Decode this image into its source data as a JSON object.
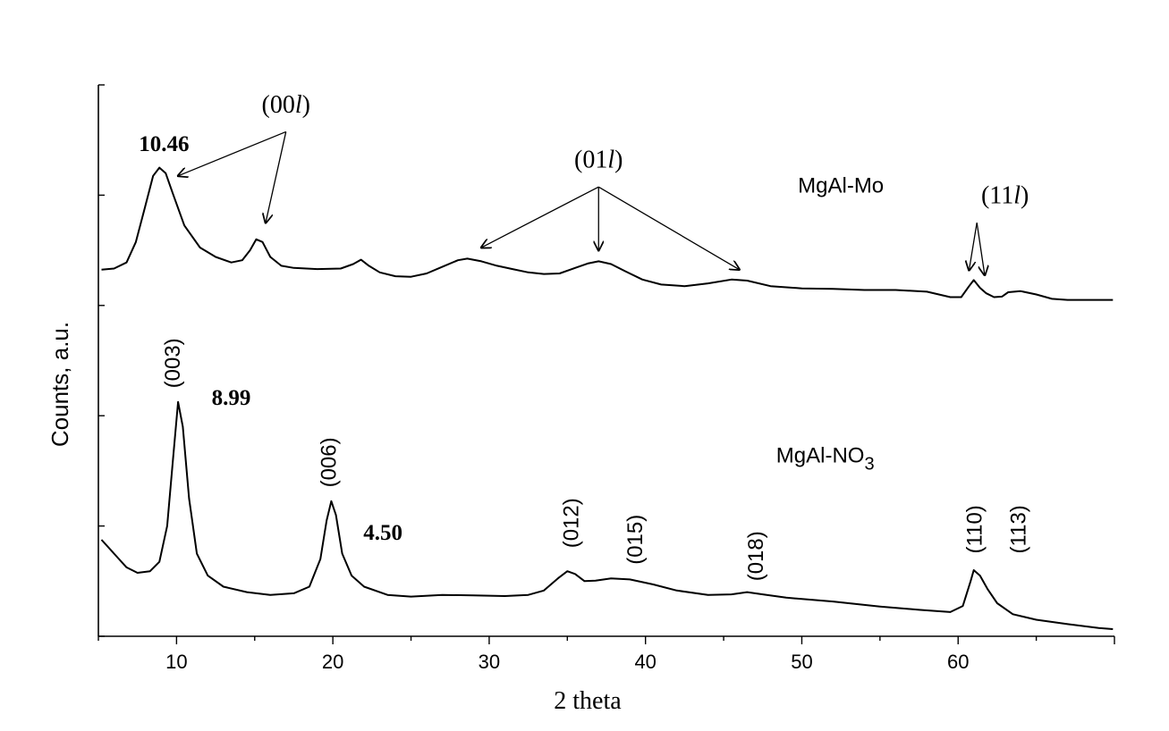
{
  "chart_data": {
    "type": "line",
    "xlabel": "2 theta",
    "ylabel": "Counts, a.u.",
    "xlim": [
      5,
      70
    ],
    "ylim": [
      0,
      100
    ],
    "x_ticks": [
      "10",
      "20",
      "30",
      "40",
      "50",
      "60"
    ],
    "x_tick_values": [
      10,
      20,
      30,
      40,
      50,
      60
    ],
    "grid": false,
    "series": [
      {
        "name": "MgAl-Mo",
        "points": [
          [
            5.2,
            66.5
          ],
          [
            6,
            66.7
          ],
          [
            6.8,
            67.8
          ],
          [
            7.4,
            71.5
          ],
          [
            8,
            78
          ],
          [
            8.5,
            83.5
          ],
          [
            8.9,
            85
          ],
          [
            9.3,
            84
          ],
          [
            9.8,
            80
          ],
          [
            10.5,
            74.5
          ],
          [
            11.5,
            70.5
          ],
          [
            12.5,
            68.8
          ],
          [
            13.5,
            67.8
          ],
          [
            14.2,
            68.2
          ],
          [
            14.7,
            70
          ],
          [
            15.1,
            72
          ],
          [
            15.5,
            71.5
          ],
          [
            16,
            68.8
          ],
          [
            16.7,
            67.2
          ],
          [
            17.5,
            66.8
          ],
          [
            19,
            66.6
          ],
          [
            20.5,
            66.7
          ],
          [
            21.3,
            67.5
          ],
          [
            21.8,
            68.3
          ],
          [
            22.3,
            67.2
          ],
          [
            23,
            66
          ],
          [
            24,
            65.3
          ],
          [
            25,
            65.2
          ],
          [
            26,
            65.8
          ],
          [
            27,
            67
          ],
          [
            28,
            68.2
          ],
          [
            28.6,
            68.5
          ],
          [
            29.5,
            68
          ],
          [
            30.5,
            67.2
          ],
          [
            31.5,
            66.6
          ],
          [
            32.5,
            66
          ],
          [
            33.5,
            65.7
          ],
          [
            34.5,
            65.8
          ],
          [
            35.5,
            66.8
          ],
          [
            36.3,
            67.6
          ],
          [
            37,
            68
          ],
          [
            37.8,
            67.5
          ],
          [
            38.7,
            66.2
          ],
          [
            39.8,
            64.7
          ],
          [
            41,
            63.8
          ],
          [
            42.5,
            63.5
          ],
          [
            44,
            64
          ],
          [
            45.5,
            64.7
          ],
          [
            46.5,
            64.5
          ],
          [
            48,
            63.5
          ],
          [
            50,
            63.1
          ],
          [
            52,
            63
          ],
          [
            54,
            62.8
          ],
          [
            56,
            62.8
          ],
          [
            58,
            62.5
          ],
          [
            59.5,
            61.5
          ],
          [
            60.2,
            61.5
          ],
          [
            60.7,
            63.5
          ],
          [
            61,
            64.6
          ],
          [
            61.4,
            63.2
          ],
          [
            61.8,
            62.2
          ],
          [
            62.3,
            61.5
          ],
          [
            62.8,
            61.6
          ],
          [
            63.2,
            62.4
          ],
          [
            64,
            62.6
          ],
          [
            65,
            62
          ],
          [
            66,
            61.2
          ],
          [
            67,
            61
          ],
          [
            68.5,
            61
          ],
          [
            69.9,
            61
          ]
        ]
      },
      {
        "name": "MgAl-NO3",
        "points": [
          [
            5.2,
            17.5
          ],
          [
            6,
            15
          ],
          [
            6.8,
            12.5
          ],
          [
            7.5,
            11.5
          ],
          [
            8.3,
            11.8
          ],
          [
            8.9,
            13.5
          ],
          [
            9.4,
            20
          ],
          [
            9.8,
            33
          ],
          [
            10.1,
            42.5
          ],
          [
            10.4,
            38
          ],
          [
            10.8,
            25
          ],
          [
            11.3,
            15
          ],
          [
            12,
            11
          ],
          [
            13,
            9
          ],
          [
            14.5,
            8
          ],
          [
            16,
            7.5
          ],
          [
            17.5,
            7.8
          ],
          [
            18.5,
            9
          ],
          [
            19.2,
            14
          ],
          [
            19.6,
            21
          ],
          [
            19.9,
            24.5
          ],
          [
            20.2,
            22
          ],
          [
            20.6,
            15
          ],
          [
            21.2,
            11
          ],
          [
            22,
            9
          ],
          [
            23.5,
            7.5
          ],
          [
            25,
            7.2
          ],
          [
            27,
            7.5
          ],
          [
            29,
            7.4
          ],
          [
            31,
            7.3
          ],
          [
            32.5,
            7.5
          ],
          [
            33.5,
            8.3
          ],
          [
            34.4,
            10.5
          ],
          [
            35,
            11.8
          ],
          [
            35.5,
            11.3
          ],
          [
            36.1,
            10
          ],
          [
            36.8,
            10.1
          ],
          [
            37.8,
            10.5
          ],
          [
            39,
            10.3
          ],
          [
            40.5,
            9.4
          ],
          [
            42,
            8.3
          ],
          [
            44,
            7.5
          ],
          [
            45.5,
            7.6
          ],
          [
            46.5,
            8
          ],
          [
            47.5,
            7.6
          ],
          [
            49,
            7
          ],
          [
            52,
            6.3
          ],
          [
            55,
            5.4
          ],
          [
            57.5,
            4.8
          ],
          [
            59.5,
            4.4
          ],
          [
            60.3,
            5.5
          ],
          [
            60.8,
            10
          ],
          [
            61,
            12
          ],
          [
            61.4,
            11
          ],
          [
            61.9,
            8.5
          ],
          [
            62.5,
            6
          ],
          [
            63.5,
            4
          ],
          [
            65,
            3
          ],
          [
            67,
            2.2
          ],
          [
            69,
            1.5
          ],
          [
            69.9,
            1.3
          ]
        ]
      }
    ],
    "annotations": {
      "d_spacings": [
        {
          "text": "10.46",
          "x": 9.2,
          "y": 88
        },
        {
          "text": "8.99",
          "x": 13.5,
          "y": 42
        },
        {
          "text": "4.50",
          "x": 23.2,
          "y": 17.5
        }
      ],
      "miller_indices": [
        {
          "text": "(003)",
          "x": 10.2,
          "y": 45
        },
        {
          "text": "(006)",
          "x": 20.2,
          "y": 27
        },
        {
          "text": "(012)",
          "x": 35.7,
          "y": 16
        },
        {
          "text": "(015)",
          "x": 39.8,
          "y": 13
        },
        {
          "text": "(018)",
          "x": 47.5,
          "y": 10
        },
        {
          "text": "(110)",
          "x": 61.5,
          "y": 15
        },
        {
          "text": "(113)",
          "x": 64.3,
          "y": 15
        }
      ],
      "groups": [
        {
          "text": "(00",
          "ital": "l",
          "close": ")",
          "x": 17,
          "y": 95,
          "tip_x": 17,
          "tip_y": 91.5,
          "targets": [
            [
              10.1,
              83.5
            ],
            [
              15.7,
              75
            ]
          ]
        },
        {
          "text": "(01",
          "ital": "l",
          "close": ")",
          "x": 37,
          "y": 85,
          "tip_x": 37,
          "tip_y": 81.5,
          "targets": [
            [
              29.5,
              70.5
            ],
            [
              37,
              70
            ],
            [
              46,
              66.5
            ]
          ]
        },
        {
          "text": "(11",
          "ital": "l",
          "close": ")",
          "x": 63,
          "y": 78.5,
          "tip_x": 61.2,
          "tip_y": 75,
          "targets": [
            [
              60.7,
              66.4
            ],
            [
              61.7,
              65.5
            ]
          ]
        }
      ],
      "series_labels": [
        {
          "text": "MgAl-Mo",
          "x": 52.5,
          "y": 80.5
        },
        {
          "text": "MgAl-NO",
          "sub": "3",
          "x": 51.5,
          "y": 31.5
        }
      ]
    }
  }
}
